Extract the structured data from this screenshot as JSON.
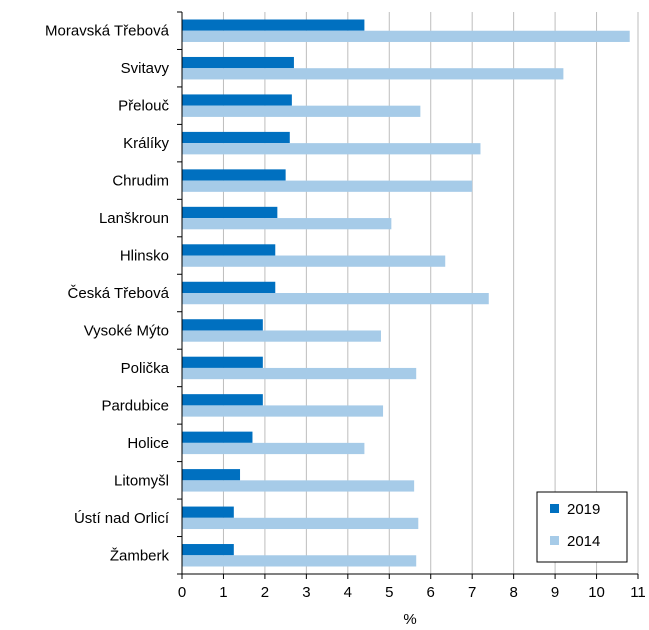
{
  "chart_data": {
    "type": "bar",
    "orientation": "horizontal",
    "categories": [
      "Moravská Třebová",
      "Svitavy",
      "Přelouč",
      "Králíky",
      "Chrudim",
      "Lanškroun",
      "Hlinsko",
      "Česká Třebová",
      "Vysoké Mýto",
      "Polička",
      "Pardubice",
      "Holice",
      "Litomyšl",
      "Ústí nad Orlicí",
      "Žamberk"
    ],
    "series": [
      {
        "name": "2019",
        "color": "#0070c0",
        "values": [
          4.4,
          2.7,
          2.65,
          2.6,
          2.5,
          2.3,
          2.25,
          2.25,
          1.95,
          1.95,
          1.95,
          1.7,
          1.4,
          1.25,
          1.25
        ]
      },
      {
        "name": "2014",
        "color": "#a6cbe8",
        "values": [
          10.8,
          9.2,
          5.75,
          7.2,
          7.0,
          5.05,
          6.35,
          7.4,
          4.8,
          5.65,
          4.85,
          4.4,
          5.6,
          5.7,
          5.65
        ]
      }
    ],
    "xlim": [
      0,
      11
    ],
    "xticks": [
      "0",
      "1",
      "2",
      "3",
      "4",
      "5",
      "6",
      "7",
      "8",
      "9",
      "10",
      "11"
    ],
    "xlabel": "%",
    "title": "",
    "grid": "vertical",
    "legend_position": "bottom-right"
  }
}
